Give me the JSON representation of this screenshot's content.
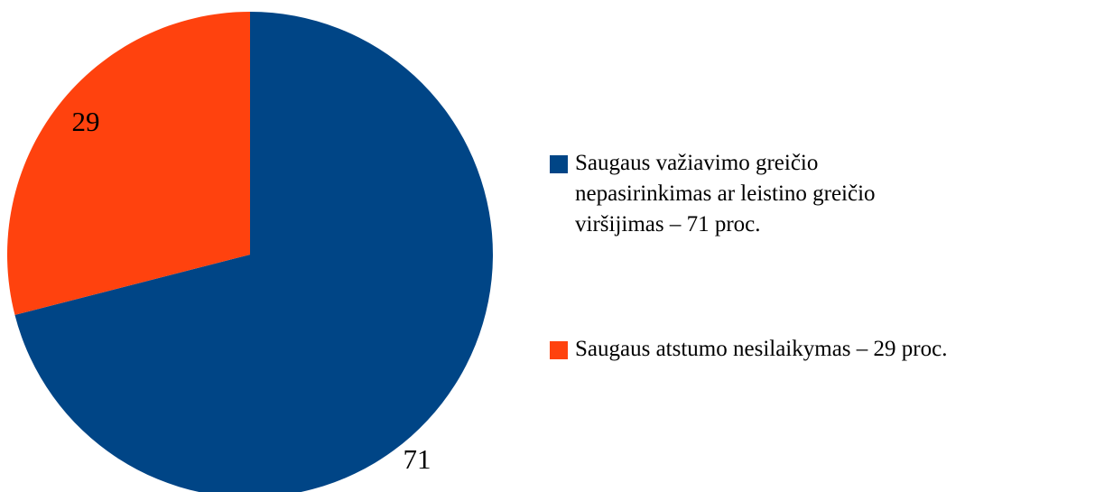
{
  "chart_data": {
    "type": "pie",
    "categories": [
      "Saugaus važiavimo greičio nepasirinkimas ar leistino greičio viršijimas – 71 proc.",
      "Saugaus atstumo nesilaikymas – 29 proc."
    ],
    "values": [
      71,
      29
    ],
    "colors": [
      "#004586",
      "#ff420e"
    ],
    "legend": "right"
  }
}
